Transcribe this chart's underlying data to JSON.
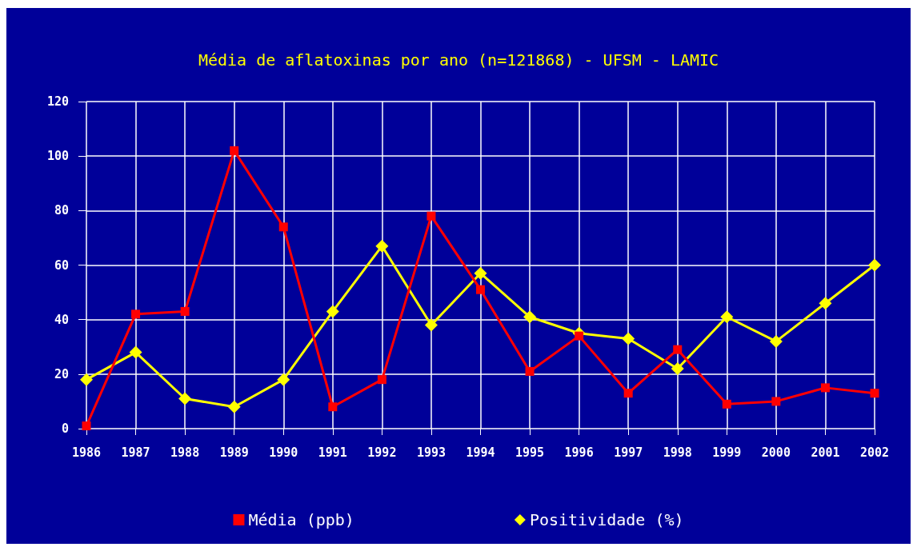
{
  "chart_data": {
    "type": "line",
    "title": "Média de aflatoxinas por ano (n=121868) - UFSM - LAMIC",
    "categories": [
      "1986",
      "1987",
      "1988",
      "1989",
      "1990",
      "1991",
      "1992",
      "1993",
      "1994",
      "1995",
      "1996",
      "1997",
      "1998",
      "1999",
      "2000",
      "2001",
      "2002"
    ],
    "series": [
      {
        "name": "Média (ppb)",
        "color": "#ff0000",
        "marker": "square",
        "values": [
          1,
          42,
          43,
          102,
          74,
          8,
          18,
          78,
          51,
          21,
          34,
          13,
          29,
          9,
          10,
          15,
          13
        ]
      },
      {
        "name": "Positividade (%)",
        "color": "#ffff00",
        "marker": "diamond",
        "values": [
          18,
          28,
          11,
          8,
          18,
          43,
          67,
          38,
          57,
          41,
          35,
          33,
          22,
          41,
          32,
          46,
          60
        ]
      }
    ],
    "ylim": [
      0,
      120
    ],
    "yticks": [
      0,
      20,
      40,
      60,
      80,
      100,
      120
    ],
    "grid": true,
    "legend": "bottom",
    "line_style": "solid"
  }
}
